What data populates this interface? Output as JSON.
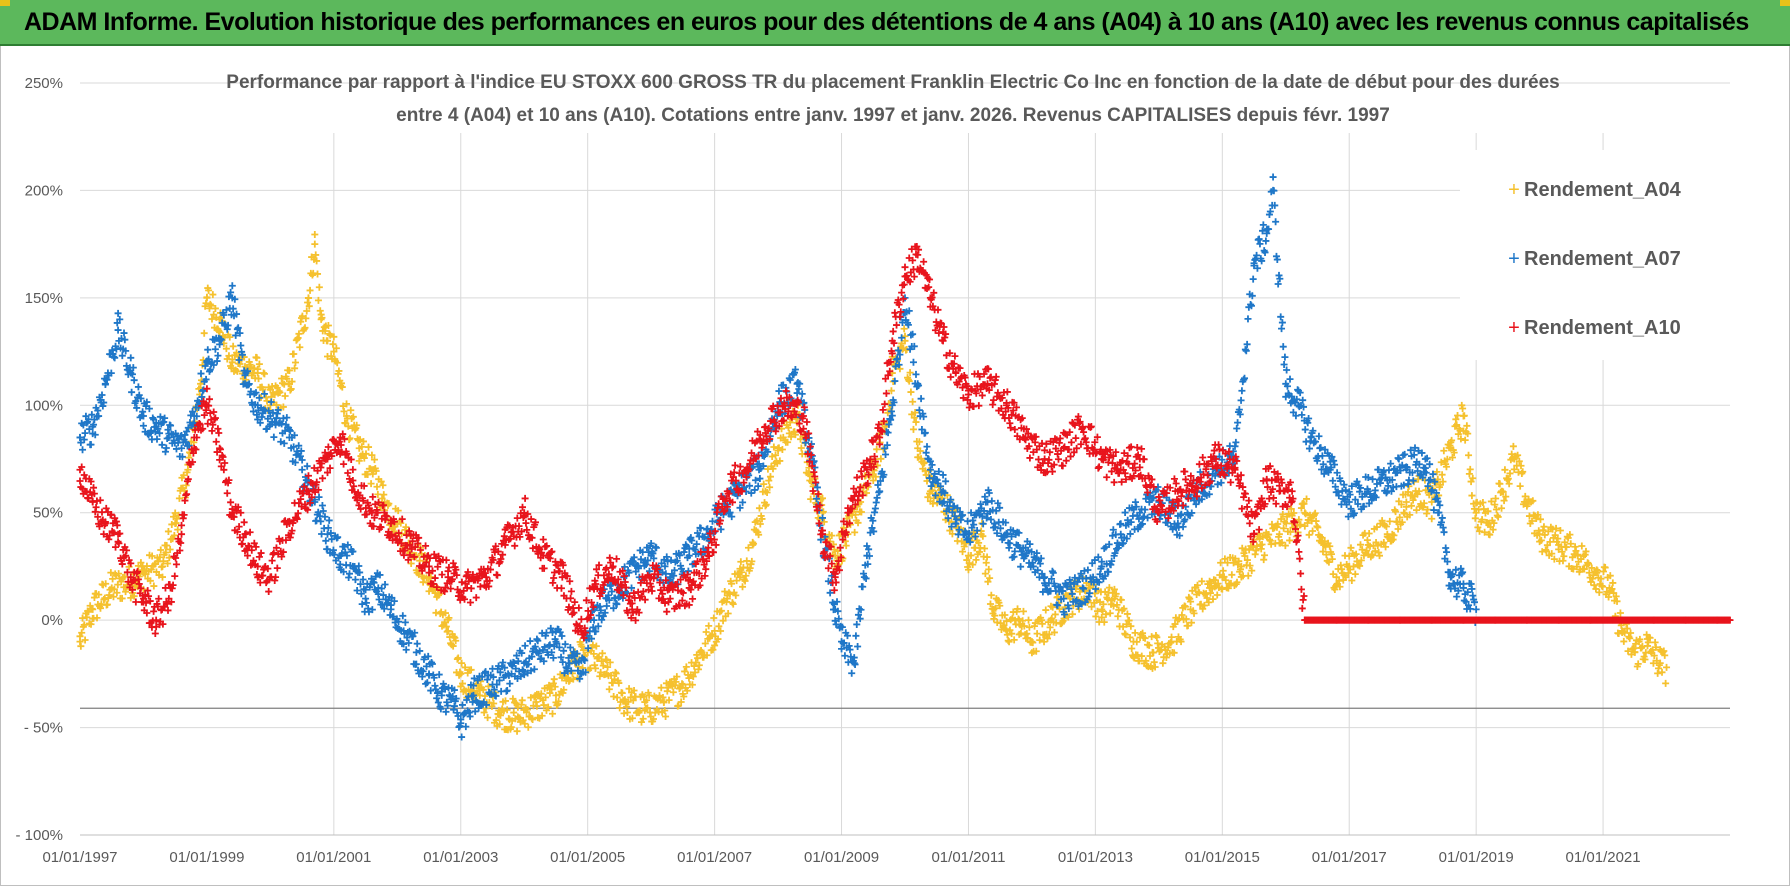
{
  "header": {
    "banner_title": "ADAM Informe. Evolution historique des performances en euros pour des détentions de 4 ans (A04) à 10 ans (A10) avec les revenus connus capitalisés",
    "banner_color": "#5cb85c"
  },
  "chart_data": {
    "type": "scatter",
    "title_line1": "Performance par rapport à l'indice EU STOXX 600 GROSS TR  du placement Franklin Electric Co Inc en fonction de la date de début pour des durées",
    "title_line2": "entre 4 (A04) et 10 ans (A10). Cotations entre janv. 1997 et janv. 2026. Revenus CAPITALISES depuis févr. 1997",
    "xlim": [
      1997.0,
      2023.0
    ],
    "ylim": [
      -100,
      250
    ],
    "y_ticks": [
      250,
      200,
      150,
      100,
      50,
      0,
      -50,
      -100
    ],
    "y_tick_labels": [
      "250%",
      "200%",
      "150%",
      "100%",
      "50%",
      "0%",
      "- 50%",
      "- 100%"
    ],
    "x_ticks": [
      1997,
      1999,
      2001,
      2003,
      2005,
      2007,
      2009,
      2011,
      2013,
      2015,
      2017,
      2019,
      2021
    ],
    "x_tick_labels": [
      "01/01/1997",
      "01/01/1999",
      "01/01/2001",
      "01/01/2003",
      "01/01/2005",
      "01/01/2007",
      "01/01/2009",
      "01/01/2011",
      "01/01/2013",
      "01/01/2015",
      "01/01/2017",
      "01/01/2019",
      "01/01/2021"
    ],
    "x_gridlines": [
      2001,
      2003,
      2005,
      2007,
      2009,
      2011,
      2013,
      2015,
      2017,
      2019,
      2021
    ],
    "reference_line_y": -41,
    "legend_position": "top-right",
    "series": [
      {
        "name": "Rendement_A04",
        "color": "#f5c12e",
        "points": [
          [
            1997.0,
            -10
          ],
          [
            1997.2,
            5
          ],
          [
            1997.5,
            15
          ],
          [
            1997.8,
            18
          ],
          [
            1998.0,
            22
          ],
          [
            1998.3,
            25
          ],
          [
            1998.5,
            45
          ],
          [
            1998.7,
            70
          ],
          [
            1998.9,
            110
          ],
          [
            1999.0,
            150
          ],
          [
            1999.2,
            140
          ],
          [
            1999.4,
            120
          ],
          [
            1999.6,
            118
          ],
          [
            1999.8,
            115
          ],
          [
            2000.0,
            100
          ],
          [
            2000.3,
            110
          ],
          [
            2000.6,
            150
          ],
          [
            2000.7,
            175
          ],
          [
            2000.8,
            140
          ],
          [
            2000.9,
            130
          ],
          [
            2001.0,
            125
          ],
          [
            2001.2,
            95
          ],
          [
            2001.4,
            80
          ],
          [
            2001.6,
            70
          ],
          [
            2001.8,
            55
          ],
          [
            2002.0,
            45
          ],
          [
            2002.3,
            30
          ],
          [
            2002.5,
            20
          ],
          [
            2002.8,
            -5
          ],
          [
            2003.0,
            -25
          ],
          [
            2003.3,
            -35
          ],
          [
            2003.6,
            -42
          ],
          [
            2003.9,
            -45
          ],
          [
            2004.2,
            -40
          ],
          [
            2004.5,
            -35
          ],
          [
            2004.8,
            -20
          ],
          [
            2005.0,
            -15
          ],
          [
            2005.3,
            -25
          ],
          [
            2005.6,
            -38
          ],
          [
            2005.9,
            -42
          ],
          [
            2006.2,
            -38
          ],
          [
            2006.5,
            -30
          ],
          [
            2006.8,
            -15
          ],
          [
            2007.0,
            -5
          ],
          [
            2007.2,
            10
          ],
          [
            2007.4,
            20
          ],
          [
            2007.6,
            35
          ],
          [
            2007.8,
            60
          ],
          [
            2008.0,
            80
          ],
          [
            2008.3,
            95
          ],
          [
            2008.5,
            65
          ],
          [
            2008.7,
            50
          ],
          [
            2008.9,
            30
          ],
          [
            2009.1,
            40
          ],
          [
            2009.3,
            55
          ],
          [
            2009.5,
            70
          ],
          [
            2009.7,
            90
          ],
          [
            2009.8,
            115
          ],
          [
            2010.0,
            130
          ],
          [
            2010.2,
            80
          ],
          [
            2010.4,
            60
          ],
          [
            2010.6,
            55
          ],
          [
            2010.8,
            45
          ],
          [
            2011.0,
            30
          ],
          [
            2011.2,
            40
          ],
          [
            2011.4,
            5
          ],
          [
            2011.6,
            -5
          ],
          [
            2011.8,
            0
          ],
          [
            2012.0,
            -10
          ],
          [
            2012.3,
            0
          ],
          [
            2012.6,
            10
          ],
          [
            2012.9,
            15
          ],
          [
            2013.1,
            5
          ],
          [
            2013.3,
            10
          ],
          [
            2013.6,
            -10
          ],
          [
            2013.9,
            -15
          ],
          [
            2014.2,
            -10
          ],
          [
            2014.5,
            5
          ],
          [
            2014.8,
            15
          ],
          [
            2015.0,
            20
          ],
          [
            2015.3,
            25
          ],
          [
            2015.6,
            35
          ],
          [
            2015.9,
            40
          ],
          [
            2016.1,
            45
          ],
          [
            2016.3,
            50
          ],
          [
            2016.6,
            35
          ],
          [
            2016.8,
            20
          ],
          [
            2017.0,
            25
          ],
          [
            2017.3,
            35
          ],
          [
            2017.6,
            40
          ],
          [
            2017.9,
            55
          ],
          [
            2018.1,
            60
          ],
          [
            2018.3,
            55
          ],
          [
            2018.6,
            80
          ],
          [
            2018.8,
            95
          ],
          [
            2019.0,
            50
          ],
          [
            2019.2,
            45
          ],
          [
            2019.4,
            60
          ],
          [
            2019.6,
            75
          ],
          [
            2019.8,
            55
          ],
          [
            2020.0,
            40
          ],
          [
            2020.3,
            35
          ],
          [
            2020.6,
            30
          ],
          [
            2020.9,
            22
          ],
          [
            2021.1,
            15
          ],
          [
            2021.3,
            -5
          ],
          [
            2021.5,
            -15
          ],
          [
            2021.7,
            -12
          ],
          [
            2021.9,
            -20
          ],
          [
            2022.0,
            -22
          ]
        ]
      },
      {
        "name": "Rendement_A07",
        "color": "#1f77c8",
        "points": [
          [
            1997.0,
            85
          ],
          [
            1997.2,
            90
          ],
          [
            1997.4,
            110
          ],
          [
            1997.6,
            135
          ],
          [
            1997.8,
            115
          ],
          [
            1998.0,
            95
          ],
          [
            1998.2,
            90
          ],
          [
            1998.4,
            85
          ],
          [
            1998.6,
            80
          ],
          [
            1998.8,
            95
          ],
          [
            1999.0,
            120
          ],
          [
            1999.2,
            130
          ],
          [
            1999.4,
            150
          ],
          [
            1999.6,
            110
          ],
          [
            1999.8,
            100
          ],
          [
            2000.0,
            95
          ],
          [
            2000.3,
            85
          ],
          [
            2000.5,
            70
          ],
          [
            2000.7,
            55
          ],
          [
            2000.9,
            40
          ],
          [
            2001.1,
            30
          ],
          [
            2001.3,
            25
          ],
          [
            2001.5,
            10
          ],
          [
            2001.7,
            15
          ],
          [
            2001.9,
            5
          ],
          [
            2002.1,
            -5
          ],
          [
            2002.3,
            -15
          ],
          [
            2002.5,
            -25
          ],
          [
            2002.7,
            -35
          ],
          [
            2002.9,
            -40
          ],
          [
            2003.0,
            -48
          ],
          [
            2003.2,
            -35
          ],
          [
            2003.5,
            -30
          ],
          [
            2003.8,
            -25
          ],
          [
            2004.0,
            -20
          ],
          [
            2004.2,
            -15
          ],
          [
            2004.5,
            -10
          ],
          [
            2004.7,
            -20
          ],
          [
            2004.9,
            -25
          ],
          [
            2005.1,
            0
          ],
          [
            2005.3,
            10
          ],
          [
            2005.5,
            15
          ],
          [
            2005.8,
            25
          ],
          [
            2006.0,
            30
          ],
          [
            2006.3,
            20
          ],
          [
            2006.6,
            30
          ],
          [
            2006.9,
            40
          ],
          [
            2007.1,
            50
          ],
          [
            2007.4,
            60
          ],
          [
            2007.7,
            70
          ],
          [
            2008.0,
            100
          ],
          [
            2008.3,
            110
          ],
          [
            2008.5,
            80
          ],
          [
            2008.7,
            40
          ],
          [
            2008.9,
            5
          ],
          [
            2009.0,
            -10
          ],
          [
            2009.2,
            -20
          ],
          [
            2009.4,
            30
          ],
          [
            2009.6,
            60
          ],
          [
            2009.8,
            100
          ],
          [
            2010.0,
            150
          ],
          [
            2010.2,
            110
          ],
          [
            2010.4,
            70
          ],
          [
            2010.6,
            60
          ],
          [
            2010.8,
            45
          ],
          [
            2011.0,
            40
          ],
          [
            2011.3,
            55
          ],
          [
            2011.6,
            40
          ],
          [
            2011.9,
            30
          ],
          [
            2012.2,
            20
          ],
          [
            2012.5,
            10
          ],
          [
            2012.8,
            15
          ],
          [
            2013.1,
            25
          ],
          [
            2013.4,
            40
          ],
          [
            2013.7,
            50
          ],
          [
            2014.0,
            55
          ],
          [
            2014.3,
            45
          ],
          [
            2014.6,
            60
          ],
          [
            2014.9,
            70
          ],
          [
            2015.2,
            75
          ],
          [
            2015.5,
            165
          ],
          [
            2015.7,
            180
          ],
          [
            2015.8,
            200
          ],
          [
            2016.0,
            110
          ],
          [
            2016.2,
            100
          ],
          [
            2016.4,
            85
          ],
          [
            2016.7,
            70
          ],
          [
            2017.0,
            55
          ],
          [
            2017.3,
            60
          ],
          [
            2017.6,
            65
          ],
          [
            2017.9,
            70
          ],
          [
            2018.2,
            75
          ],
          [
            2018.4,
            50
          ],
          [
            2018.6,
            20
          ],
          [
            2018.8,
            15
          ],
          [
            2019.0,
            5
          ]
        ]
      },
      {
        "name": "Rendement_A10",
        "color": "#e8141c",
        "points": [
          [
            1997.0,
            70
          ],
          [
            1997.2,
            55
          ],
          [
            1997.4,
            45
          ],
          [
            1997.6,
            40
          ],
          [
            1997.8,
            20
          ],
          [
            1998.0,
            10
          ],
          [
            1998.2,
            0
          ],
          [
            1998.4,
            10
          ],
          [
            1998.6,
            40
          ],
          [
            1998.8,
            85
          ],
          [
            1999.0,
            100
          ],
          [
            1999.2,
            80
          ],
          [
            1999.4,
            50
          ],
          [
            1999.6,
            40
          ],
          [
            1999.8,
            25
          ],
          [
            2000.0,
            20
          ],
          [
            2000.3,
            45
          ],
          [
            2000.6,
            60
          ],
          [
            2000.9,
            75
          ],
          [
            2001.1,
            85
          ],
          [
            2001.3,
            65
          ],
          [
            2001.6,
            50
          ],
          [
            2001.9,
            45
          ],
          [
            2002.2,
            35
          ],
          [
            2002.5,
            25
          ],
          [
            2002.8,
            20
          ],
          [
            2003.1,
            15
          ],
          [
            2003.4,
            20
          ],
          [
            2003.7,
            35
          ],
          [
            2004.0,
            50
          ],
          [
            2004.3,
            30
          ],
          [
            2004.6,
            20
          ],
          [
            2004.9,
            -5
          ],
          [
            2005.1,
            15
          ],
          [
            2005.4,
            25
          ],
          [
            2005.7,
            5
          ],
          [
            2006.0,
            20
          ],
          [
            2006.3,
            10
          ],
          [
            2006.6,
            15
          ],
          [
            2006.9,
            30
          ],
          [
            2007.2,
            60
          ],
          [
            2007.5,
            70
          ],
          [
            2007.8,
            90
          ],
          [
            2008.1,
            100
          ],
          [
            2008.4,
            95
          ],
          [
            2008.7,
            40
          ],
          [
            2008.9,
            20
          ],
          [
            2009.1,
            50
          ],
          [
            2009.4,
            70
          ],
          [
            2009.6,
            85
          ],
          [
            2009.8,
            130
          ],
          [
            2010.0,
            160
          ],
          [
            2010.2,
            170
          ],
          [
            2010.4,
            150
          ],
          [
            2010.6,
            130
          ],
          [
            2010.8,
            115
          ],
          [
            2011.0,
            105
          ],
          [
            2011.3,
            110
          ],
          [
            2011.6,
            100
          ],
          [
            2011.9,
            85
          ],
          [
            2012.2,
            75
          ],
          [
            2012.5,
            80
          ],
          [
            2012.8,
            90
          ],
          [
            2013.1,
            75
          ],
          [
            2013.4,
            70
          ],
          [
            2013.7,
            75
          ],
          [
            2014.0,
            50
          ],
          [
            2014.3,
            60
          ],
          [
            2014.6,
            65
          ],
          [
            2014.9,
            75
          ],
          [
            2015.2,
            70
          ],
          [
            2015.5,
            40
          ],
          [
            2015.7,
            65
          ],
          [
            2015.9,
            60
          ],
          [
            2016.1,
            60
          ],
          [
            2016.3,
            0
          ],
          [
            2016.8,
            0
          ],
          [
            2017.3,
            0
          ],
          [
            2017.8,
            0
          ],
          [
            2018.3,
            0
          ],
          [
            2018.8,
            0
          ],
          [
            2019.3,
            0
          ],
          [
            2019.8,
            0
          ],
          [
            2020.3,
            0
          ],
          [
            2020.8,
            0
          ],
          [
            2021.3,
            0
          ],
          [
            2021.8,
            0
          ],
          [
            2022.3,
            0
          ],
          [
            2022.8,
            0
          ],
          [
            2023.0,
            0
          ]
        ]
      }
    ]
  }
}
